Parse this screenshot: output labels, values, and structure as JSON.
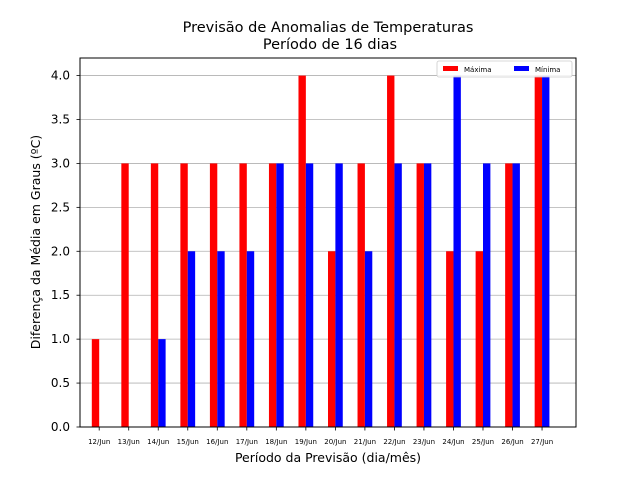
{
  "chart_data": {
    "type": "bar",
    "title_line1": "Previsão de Anomalias de Temperaturas",
    "title_line2": "Período de 16 dias",
    "xlabel": "Período da Previsão (dia/mês)",
    "ylabel": "Diferença da Média em Graus (ºC)",
    "ylim": [
      0,
      4.2
    ],
    "yticks": [
      "0.0",
      "0.5",
      "1.0",
      "1.5",
      "2.0",
      "2.5",
      "3.0",
      "3.5",
      "4.0"
    ],
    "grid": "horizontal",
    "legend_position": "top-right",
    "categories": [
      "12/Jun",
      "13/Jun",
      "14/Jun",
      "15/Jun",
      "16/Jun",
      "17/Jun",
      "18/Jun",
      "19/Jun",
      "20/Jun",
      "21/Jun",
      "22/Jun",
      "23/Jun",
      "24/Jun",
      "25/Jun",
      "26/Jun",
      "27/Jun"
    ],
    "series": [
      {
        "name": "Máxima",
        "color": "#ff0000",
        "values": [
          1,
          3,
          3,
          3,
          3,
          3,
          3,
          4,
          2,
          3,
          4,
          3,
          2,
          2,
          3,
          4
        ]
      },
      {
        "name": "Mínima",
        "color": "#0000ff",
        "values": [
          0,
          0,
          1,
          2,
          2,
          2,
          3,
          3,
          3,
          2,
          3,
          3,
          4,
          3,
          3,
          4
        ]
      }
    ]
  }
}
